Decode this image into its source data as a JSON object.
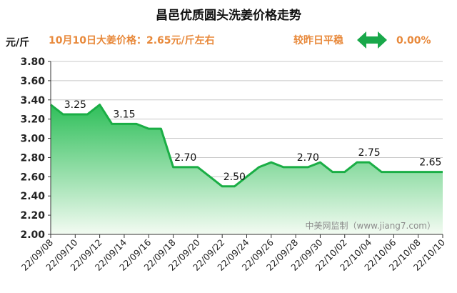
{
  "header": {
    "title": "昌邑优质圆头洗姜价格走势",
    "price_line": "10月10日大姜价格：2.65元/斤左右",
    "compare_label": "较昨日平稳",
    "compare_value": "0.00%",
    "compare_icon": "double-arrow-icon",
    "compare_icon_color": "#19a84a"
  },
  "chart_data": {
    "type": "area",
    "title": "昌邑优质圆头洗姜价格走势",
    "ylabel": "元/斤",
    "xlabel": "",
    "ylim": [
      2.0,
      3.8
    ],
    "yticks": [
      "2.00",
      "2.20",
      "2.40",
      "2.60",
      "2.80",
      "3.00",
      "3.20",
      "3.40",
      "3.60",
      "3.80"
    ],
    "grid": true,
    "xticks": [
      "22/09/08",
      "22/09/10",
      "22/09/12",
      "22/09/14",
      "22/09/16",
      "22/09/18",
      "22/09/20",
      "22/09/22",
      "22/09/24",
      "22/09/26",
      "22/09/28",
      "22/09/30",
      "22/10/02",
      "22/10/04",
      "22/10/06",
      "22/10/08",
      "22/10/10"
    ],
    "x": [
      "22/09/08",
      "22/09/09",
      "22/09/10",
      "22/09/11",
      "22/09/12",
      "22/09/13",
      "22/09/14",
      "22/09/15",
      "22/09/16",
      "22/09/17",
      "22/09/18",
      "22/09/19",
      "22/09/20",
      "22/09/21",
      "22/09/22",
      "22/09/23",
      "22/09/24",
      "22/09/25",
      "22/09/26",
      "22/09/27",
      "22/09/28",
      "22/09/29",
      "22/09/30",
      "22/10/01",
      "22/10/02",
      "22/10/03",
      "22/10/04",
      "22/10/05",
      "22/10/06",
      "22/10/07",
      "22/10/08",
      "22/10/09",
      "22/10/10"
    ],
    "values": [
      3.35,
      3.25,
      3.25,
      3.25,
      3.35,
      3.15,
      3.15,
      3.15,
      3.1,
      3.1,
      2.7,
      2.7,
      2.7,
      2.6,
      2.5,
      2.5,
      2.6,
      2.7,
      2.75,
      2.7,
      2.7,
      2.7,
      2.75,
      2.65,
      2.65,
      2.75,
      2.75,
      2.65,
      2.65,
      2.65,
      2.65,
      2.65,
      2.65
    ],
    "data_labels": [
      {
        "x": "22/09/10",
        "text": "3.25"
      },
      {
        "x": "22/09/14",
        "text": "3.15"
      },
      {
        "x": "22/09/19",
        "text": "2.70"
      },
      {
        "x": "22/09/23",
        "text": "2.50"
      },
      {
        "x": "22/09/29",
        "text": "2.70"
      },
      {
        "x": "22/10/04",
        "text": "2.75"
      },
      {
        "x": "22/10/09",
        "text": "2.65"
      }
    ],
    "line_color": "#1aae45",
    "fill_top_color": "#2fbf5a",
    "fill_bottom_color": "#f3fbf2",
    "watermark": "中美网监制（www.jiang7.com）"
  }
}
